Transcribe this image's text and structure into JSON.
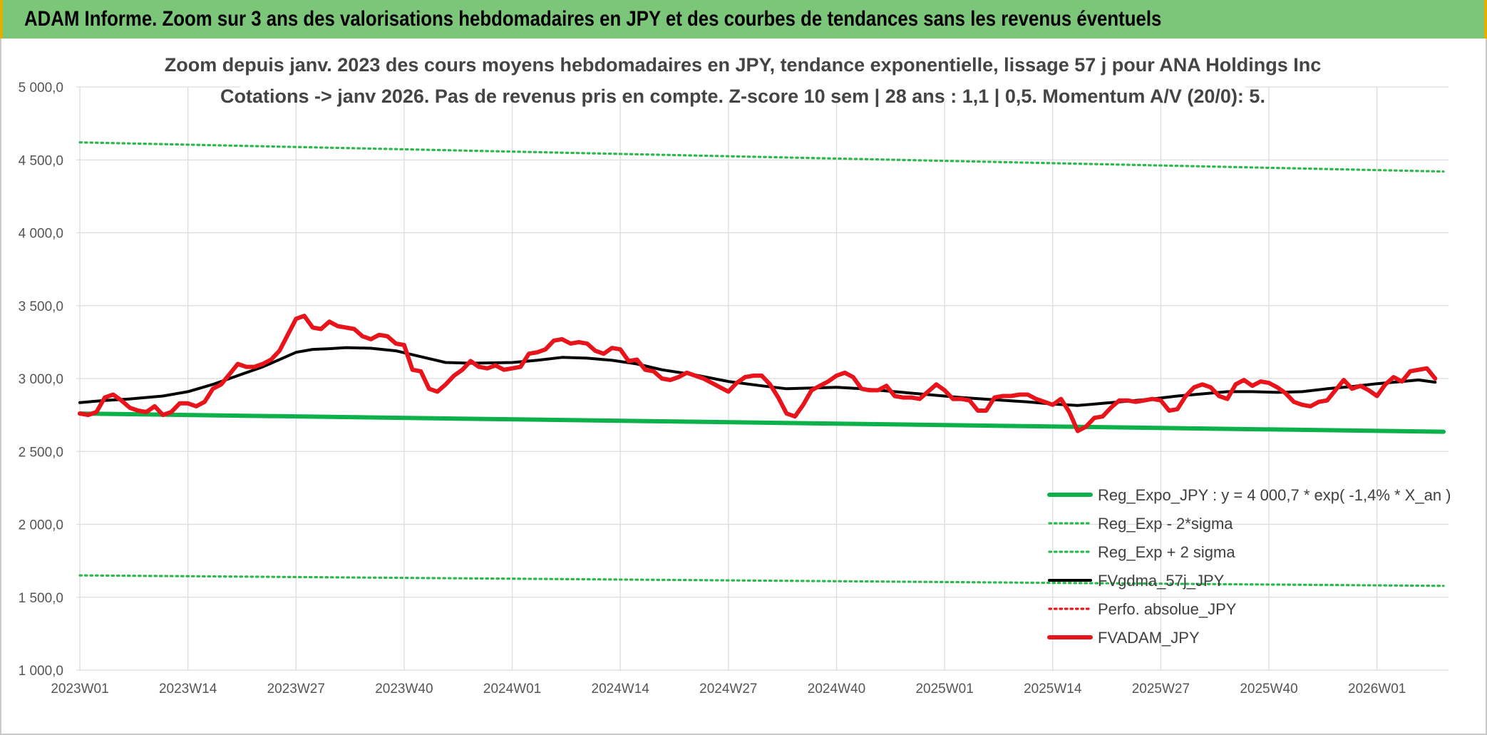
{
  "banner": {
    "title": "ADAM Informe. Zoom sur 3 ans des valorisations hebdomadaires en JPY et des courbes de tendances sans les revenus éventuels"
  },
  "colors": {
    "banner": "#7cc67a",
    "reg_expo": "#0db14b",
    "sigma": "#2db84d",
    "fvgdma": "#000000",
    "perfo": "#e8141b",
    "fvadam": "#e8141b",
    "grid": "#dcdcdc"
  },
  "chart_data": {
    "type": "line",
    "title_lines": [
      "Zoom depuis janv. 2023 des cours moyens hebdomadaires en JPY, tendance exponentielle, lissage 57 j pour ANA Holdings Inc",
      "Cotations -> janv 2026. Pas de revenus pris en compte. Z-score 10 sem | 28 ans : 1,1 | 0,5. Momentum A/V (20/0): 5."
    ],
    "ylim": [
      1000,
      5000
    ],
    "y_ticks": [
      "1 000,0",
      "1 500,0",
      "2 000,0",
      "2 500,0",
      "3 000,0",
      "3 500,0",
      "4 000,0",
      "4 500,0",
      "5 000,0"
    ],
    "x_range": [
      0,
      164
    ],
    "x_ticks": [
      {
        "label": "2023W01",
        "x": 0
      },
      {
        "label": "2023W14",
        "x": 13
      },
      {
        "label": "2023W27",
        "x": 26
      },
      {
        "label": "2023W40",
        "x": 39
      },
      {
        "label": "2024W01",
        "x": 52
      },
      {
        "label": "2024W14",
        "x": 65
      },
      {
        "label": "2024W27",
        "x": 78
      },
      {
        "label": "2024W40",
        "x": 91
      },
      {
        "label": "2025W01",
        "x": 104
      },
      {
        "label": "2025W14",
        "x": 117
      },
      {
        "label": "2025W27",
        "x": 130
      },
      {
        "label": "2025W40",
        "x": 143
      },
      {
        "label": "2026W01",
        "x": 156
      }
    ],
    "series": [
      {
        "name": "Reg_Expo_JPY : y = 4 000,7 * exp( -1,4% *  X_an )",
        "style": "thick",
        "colorKey": "reg_expo",
        "points": [
          [
            0,
            2760
          ],
          [
            164,
            2635
          ]
        ]
      },
      {
        "name": "Reg_Exp - 2*sigma",
        "style": "dotted",
        "colorKey": "sigma",
        "points": [
          [
            0,
            1650
          ],
          [
            164,
            1578
          ]
        ]
      },
      {
        "name": "Reg_Exp + 2 sigma",
        "style": "dotted",
        "colorKey": "sigma",
        "points": [
          [
            0,
            4620
          ],
          [
            164,
            4420
          ]
        ]
      },
      {
        "name": "FVgdma_57j_JPY",
        "style": "medium",
        "colorKey": "fvgdma",
        "points": [
          [
            0,
            2835
          ],
          [
            3,
            2850
          ],
          [
            6,
            2860
          ],
          [
            10,
            2880
          ],
          [
            13,
            2910
          ],
          [
            16,
            2960
          ],
          [
            19,
            3020
          ],
          [
            22,
            3080
          ],
          [
            24,
            3130
          ],
          [
            26,
            3180
          ],
          [
            28,
            3200
          ],
          [
            30,
            3205
          ],
          [
            32,
            3212
          ],
          [
            35,
            3208
          ],
          [
            38,
            3190
          ],
          [
            41,
            3150
          ],
          [
            44,
            3110
          ],
          [
            47,
            3105
          ],
          [
            52,
            3110
          ],
          [
            55,
            3125
          ],
          [
            58,
            3145
          ],
          [
            61,
            3140
          ],
          [
            64,
            3125
          ],
          [
            67,
            3100
          ],
          [
            70,
            3060
          ],
          [
            74,
            3025
          ],
          [
            78,
            2980
          ],
          [
            82,
            2950
          ],
          [
            85,
            2930
          ],
          [
            88,
            2935
          ],
          [
            91,
            2940
          ],
          [
            94,
            2930
          ],
          [
            98,
            2910
          ],
          [
            102,
            2890
          ],
          [
            106,
            2870
          ],
          [
            110,
            2855
          ],
          [
            114,
            2840
          ],
          [
            117,
            2825
          ],
          [
            120,
            2815
          ],
          [
            123,
            2830
          ],
          [
            126,
            2845
          ],
          [
            129,
            2860
          ],
          [
            132,
            2880
          ],
          [
            135,
            2895
          ],
          [
            138,
            2910
          ],
          [
            141,
            2910
          ],
          [
            144,
            2905
          ],
          [
            147,
            2910
          ],
          [
            150,
            2930
          ],
          [
            153,
            2945
          ],
          [
            156,
            2965
          ],
          [
            159,
            2980
          ],
          [
            161,
            2990
          ],
          [
            163,
            2975
          ]
        ]
      },
      {
        "name": "Perfo. absolue_JPY",
        "style": "dotted",
        "colorKey": "perfo",
        "points": []
      },
      {
        "name": "FVADAM_JPY",
        "style": "thick",
        "colorKey": "fvadam",
        "points": [
          [
            0,
            2760
          ],
          [
            1,
            2750
          ],
          [
            2,
            2770
          ],
          [
            3,
            2870
          ],
          [
            4,
            2890
          ],
          [
            5,
            2850
          ],
          [
            6,
            2800
          ],
          [
            7,
            2780
          ],
          [
            8,
            2770
          ],
          [
            9,
            2810
          ],
          [
            10,
            2750
          ],
          [
            11,
            2770
          ],
          [
            12,
            2830
          ],
          [
            13,
            2830
          ],
          [
            14,
            2810
          ],
          [
            15,
            2840
          ],
          [
            16,
            2930
          ],
          [
            17,
            2960
          ],
          [
            18,
            3030
          ],
          [
            19,
            3100
          ],
          [
            20,
            3080
          ],
          [
            21,
            3080
          ],
          [
            22,
            3100
          ],
          [
            23,
            3130
          ],
          [
            24,
            3190
          ],
          [
            25,
            3300
          ],
          [
            26,
            3410
          ],
          [
            27,
            3430
          ],
          [
            28,
            3350
          ],
          [
            29,
            3340
          ],
          [
            30,
            3390
          ],
          [
            31,
            3360
          ],
          [
            32,
            3350
          ],
          [
            33,
            3340
          ],
          [
            34,
            3290
          ],
          [
            35,
            3270
          ],
          [
            36,
            3300
          ],
          [
            37,
            3290
          ],
          [
            38,
            3240
          ],
          [
            39,
            3230
          ],
          [
            40,
            3060
          ],
          [
            41,
            3050
          ],
          [
            42,
            2930
          ],
          [
            43,
            2910
          ],
          [
            44,
            2960
          ],
          [
            45,
            3020
          ],
          [
            46,
            3060
          ],
          [
            47,
            3120
          ],
          [
            48,
            3080
          ],
          [
            49,
            3070
          ],
          [
            50,
            3090
          ],
          [
            51,
            3060
          ],
          [
            52,
            3070
          ],
          [
            53,
            3080
          ],
          [
            54,
            3170
          ],
          [
            55,
            3180
          ],
          [
            56,
            3200
          ],
          [
            57,
            3260
          ],
          [
            58,
            3270
          ],
          [
            59,
            3240
          ],
          [
            60,
            3250
          ],
          [
            61,
            3240
          ],
          [
            62,
            3190
          ],
          [
            63,
            3170
          ],
          [
            64,
            3210
          ],
          [
            65,
            3200
          ],
          [
            66,
            3120
          ],
          [
            67,
            3130
          ],
          [
            68,
            3060
          ],
          [
            69,
            3050
          ],
          [
            70,
            3000
          ],
          [
            71,
            2990
          ],
          [
            72,
            3010
          ],
          [
            73,
            3040
          ],
          [
            74,
            3020
          ],
          [
            75,
            3000
          ],
          [
            76,
            2970
          ],
          [
            77,
            2940
          ],
          [
            78,
            2910
          ],
          [
            79,
            2970
          ],
          [
            80,
            3010
          ],
          [
            81,
            3020
          ],
          [
            82,
            3020
          ],
          [
            83,
            2960
          ],
          [
            84,
            2870
          ],
          [
            85,
            2760
          ],
          [
            86,
            2740
          ],
          [
            87,
            2820
          ],
          [
            88,
            2920
          ],
          [
            89,
            2950
          ],
          [
            90,
            2980
          ],
          [
            91,
            3020
          ],
          [
            92,
            3040
          ],
          [
            93,
            3010
          ],
          [
            94,
            2930
          ],
          [
            95,
            2920
          ],
          [
            96,
            2920
          ],
          [
            97,
            2950
          ],
          [
            98,
            2880
          ],
          [
            99,
            2870
          ],
          [
            100,
            2870
          ],
          [
            101,
            2860
          ],
          [
            102,
            2910
          ],
          [
            103,
            2960
          ],
          [
            104,
            2920
          ],
          [
            105,
            2860
          ],
          [
            106,
            2860
          ],
          [
            107,
            2850
          ],
          [
            108,
            2780
          ],
          [
            109,
            2780
          ],
          [
            110,
            2870
          ],
          [
            111,
            2880
          ],
          [
            112,
            2880
          ],
          [
            113,
            2890
          ],
          [
            114,
            2890
          ],
          [
            115,
            2860
          ],
          [
            116,
            2840
          ],
          [
            117,
            2820
          ],
          [
            118,
            2860
          ],
          [
            119,
            2770
          ],
          [
            120,
            2640
          ],
          [
            121,
            2670
          ],
          [
            122,
            2730
          ],
          [
            123,
            2740
          ],
          [
            124,
            2800
          ],
          [
            125,
            2850
          ],
          [
            126,
            2850
          ],
          [
            127,
            2840
          ],
          [
            128,
            2850
          ],
          [
            129,
            2860
          ],
          [
            130,
            2850
          ],
          [
            131,
            2780
          ],
          [
            132,
            2790
          ],
          [
            133,
            2880
          ],
          [
            134,
            2940
          ],
          [
            135,
            2960
          ],
          [
            136,
            2940
          ],
          [
            137,
            2880
          ],
          [
            138,
            2860
          ],
          [
            139,
            2960
          ],
          [
            140,
            2990
          ],
          [
            141,
            2950
          ],
          [
            142,
            2980
          ],
          [
            143,
            2970
          ],
          [
            144,
            2940
          ],
          [
            145,
            2900
          ],
          [
            146,
            2840
          ],
          [
            147,
            2820
          ],
          [
            148,
            2810
          ],
          [
            149,
            2840
          ],
          [
            150,
            2850
          ],
          [
            151,
            2920
          ],
          [
            152,
            2990
          ],
          [
            153,
            2930
          ],
          [
            154,
            2950
          ],
          [
            155,
            2920
          ],
          [
            156,
            2880
          ],
          [
            157,
            2960
          ],
          [
            158,
            3010
          ],
          [
            159,
            2980
          ],
          [
            160,
            3050
          ],
          [
            161,
            3060
          ],
          [
            162,
            3070
          ],
          [
            163,
            3000
          ]
        ]
      }
    ]
  }
}
